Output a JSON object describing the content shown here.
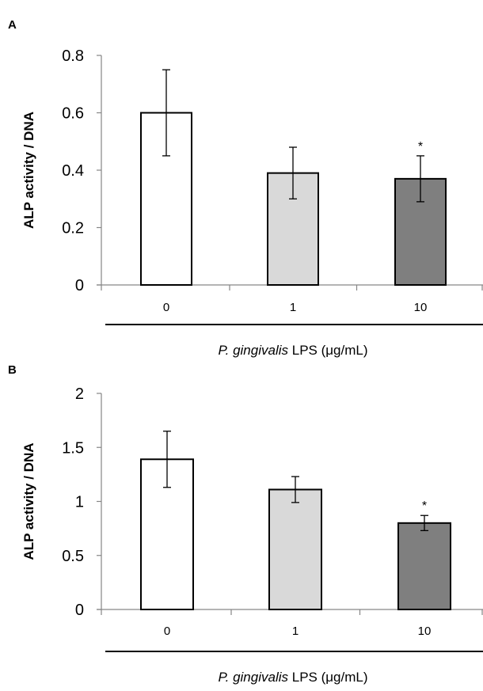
{
  "chart_data": [
    {
      "panel": "A",
      "type": "bar",
      "categories": [
        "0",
        "1",
        "10"
      ],
      "values": [
        0.6,
        0.39,
        0.37
      ],
      "errors": [
        0.15,
        0.09,
        0.08
      ],
      "significance": [
        "",
        "",
        "*"
      ],
      "bar_colors": [
        "#ffffff",
        "#d9d9d9",
        "#7f7f7f"
      ],
      "ylabel": "ALP activity / DNA",
      "xlabel_italic": "P. gingivalis",
      "xlabel_rest": " LPS (μg/mL)",
      "ylim": [
        0,
        0.8
      ],
      "yticks": [
        "0",
        "0.2",
        "0.4",
        "0.6",
        "0.8"
      ],
      "ytick_values": [
        0,
        0.2,
        0.4,
        0.6,
        0.8
      ],
      "grid": false
    },
    {
      "panel": "B",
      "type": "bar",
      "categories": [
        "0",
        "1",
        "10"
      ],
      "values": [
        1.39,
        1.11,
        0.8
      ],
      "errors": [
        0.26,
        0.12,
        0.07
      ],
      "significance": [
        "",
        "",
        "*"
      ],
      "bar_colors": [
        "#ffffff",
        "#d9d9d9",
        "#7f7f7f"
      ],
      "ylabel": "ALP activity / DNA",
      "xlabel_italic": "P. gingivalis",
      "xlabel_rest": " LPS (μg/mL)",
      "ylim": [
        0,
        2
      ],
      "yticks": [
        "0",
        "0.5",
        "1",
        "1.5",
        "2"
      ],
      "ytick_values": [
        0,
        0.5,
        1,
        1.5,
        2
      ],
      "grid": false
    }
  ]
}
